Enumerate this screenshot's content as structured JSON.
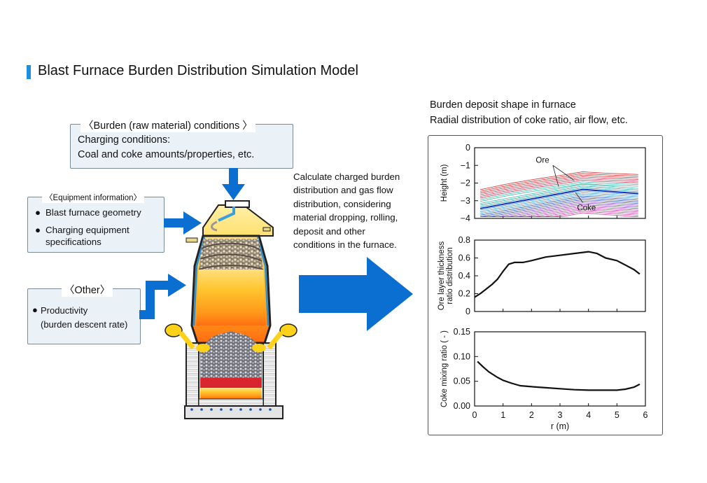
{
  "title": "Blast Furnace Burden Distribution Simulation Model",
  "burden_box": {
    "heading": "〈Burden (raw material) conditions 〉",
    "line1": "Charging conditions:",
    "line2": "Coal and coke amounts/properties, etc."
  },
  "equipment_box": {
    "heading": "〈Equipment information〉",
    "item1": "Blast furnace geometry",
    "item2_line1": "Charging equipment",
    "item2_line2": "specifications"
  },
  "other_box": {
    "heading": "〈Other〉",
    "item1_line1": "Productivity",
    "item1_line2": "(burden descent rate)"
  },
  "description": [
    "Calculate charged burden",
    "distribution and gas flow",
    "distribution, considering",
    "material dropping, rolling,",
    "deposit and other",
    "conditions in the furnace."
  ],
  "right_heading": {
    "line1": "Burden deposit shape in furnace",
    "line2": "Radial distribution of coke ratio, air flow, etc."
  },
  "colors": {
    "accent": "#1c8fe0",
    "arrow": "#0a6fd0",
    "box_bg": "#eaf2f8"
  },
  "chart_data": [
    {
      "type": "line",
      "title": "",
      "xlabel": "",
      "ylabel": "Height (m)",
      "xlim": [
        0,
        6
      ],
      "ylim": [
        -4,
        0
      ],
      "yticks": [
        "0",
        "−1",
        "−2",
        "−3",
        "−4"
      ],
      "annotations": [
        "Ore",
        "Coke"
      ]
    },
    {
      "type": "line",
      "xlabel": "",
      "ylabel": "Ore layer thickness ratio distribution",
      "xlim": [
        0,
        6
      ],
      "ylim": [
        0,
        0.8
      ],
      "yticks": [
        "0",
        "0.2",
        "0.4",
        "0.6",
        "0.8"
      ],
      "x": [
        0,
        0.2,
        0.4,
        0.6,
        0.8,
        1.0,
        1.2,
        1.4,
        1.7,
        2.0,
        2.5,
        3.0,
        3.5,
        4.0,
        4.3,
        4.6,
        5.0,
        5.3,
        5.6,
        5.8
      ],
      "values": [
        0.16,
        0.2,
        0.25,
        0.3,
        0.36,
        0.45,
        0.53,
        0.55,
        0.55,
        0.57,
        0.61,
        0.63,
        0.65,
        0.67,
        0.65,
        0.6,
        0.57,
        0.52,
        0.47,
        0.42
      ]
    },
    {
      "type": "line",
      "xlabel": "r (m)",
      "ylabel": "Coke mixing ratio ( - )",
      "xlim": [
        0,
        6
      ],
      "ylim": [
        0,
        0.15
      ],
      "yticks": [
        "0.00",
        "0.05",
        "0.10",
        "0.15"
      ],
      "xticks": [
        "0",
        "1",
        "2",
        "3",
        "4",
        "5",
        "6"
      ],
      "x": [
        0.1,
        0.3,
        0.5,
        0.8,
        1.0,
        1.3,
        1.6,
        2.0,
        2.5,
        3.0,
        3.5,
        4.0,
        4.5,
        5.0,
        5.3,
        5.6,
        5.8
      ],
      "values": [
        0.09,
        0.079,
        0.069,
        0.058,
        0.052,
        0.046,
        0.041,
        0.039,
        0.037,
        0.035,
        0.033,
        0.032,
        0.032,
        0.032,
        0.034,
        0.038,
        0.044
      ]
    }
  ]
}
